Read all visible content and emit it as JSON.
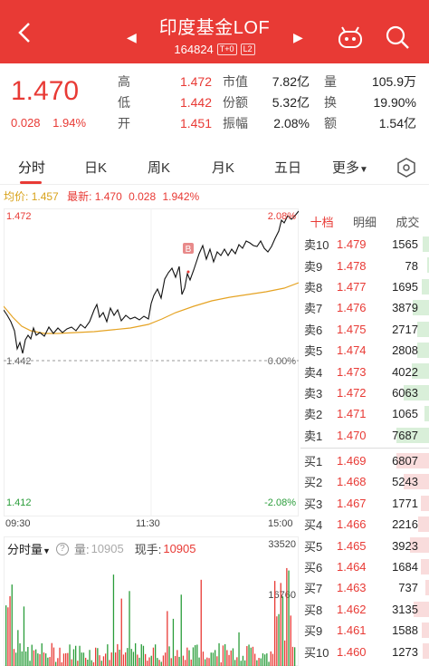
{
  "header": {
    "title": "印度基金LOF",
    "code": "164824",
    "tags": [
      "T+0",
      "L2"
    ]
  },
  "quote": {
    "price": "1.470",
    "change": "0.028",
    "change_pct": "1.94%",
    "rows": [
      {
        "l1": "高",
        "v1": "1.472",
        "l2": "市值",
        "v2": "7.82亿",
        "l3": "量",
        "v3": "105.9万"
      },
      {
        "l1": "低",
        "v1": "1.442",
        "l2": "份额",
        "v2": "5.32亿",
        "l3": "换",
        "v3": "19.90%"
      },
      {
        "l1": "开",
        "v1": "1.451",
        "l2": "振幅",
        "v2": "2.08%",
        "l3": "额",
        "v3": "1.54亿"
      }
    ]
  },
  "tabs": [
    "分时",
    "日K",
    "周K",
    "月K",
    "五日",
    "更多"
  ],
  "avg_info": {
    "avg_label": "均价:",
    "avg": "1.457",
    "latest_label": "最新:",
    "latest": "1.470",
    "chg": "0.028",
    "pct": "1.942%"
  },
  "chart": {
    "top_price": "1.472",
    "top_pct": "2.08%",
    "mid_price": "1.442",
    "mid_pct": "0.00%",
    "bot_price": "1.412",
    "bot_pct": "-2.08%",
    "t_start": "09:30",
    "t_mid": "11:30",
    "t_end": "15:00",
    "marker": "B"
  },
  "volume": {
    "dropdown": "分时量",
    "vol_label": "量:",
    "vol": "10905",
    "now_label": "现手:",
    "now": "10905",
    "max": "33520",
    "mid": "16760"
  },
  "book": {
    "tabs": [
      "十档",
      "明细",
      "成交"
    ],
    "sell": [
      {
        "label": "卖10",
        "price": "1.479",
        "vol": "1565"
      },
      {
        "label": "卖9",
        "price": "1.478",
        "vol": "78"
      },
      {
        "label": "卖8",
        "price": "1.477",
        "vol": "1695"
      },
      {
        "label": "卖7",
        "price": "1.476",
        "vol": "3879"
      },
      {
        "label": "卖6",
        "price": "1.475",
        "vol": "2717"
      },
      {
        "label": "卖5",
        "price": "1.474",
        "vol": "2808"
      },
      {
        "label": "卖4",
        "price": "1.473",
        "vol": "4022"
      },
      {
        "label": "卖3",
        "price": "1.472",
        "vol": "6063"
      },
      {
        "label": "卖2",
        "price": "1.471",
        "vol": "1065"
      },
      {
        "label": "卖1",
        "price": "1.470",
        "vol": "7687"
      }
    ],
    "buy": [
      {
        "label": "买1",
        "price": "1.469",
        "vol": "6807"
      },
      {
        "label": "买2",
        "price": "1.468",
        "vol": "5243"
      },
      {
        "label": "买3",
        "price": "1.467",
        "vol": "1771"
      },
      {
        "label": "买4",
        "price": "1.466",
        "vol": "2216"
      },
      {
        "label": "买5",
        "price": "1.465",
        "vol": "3923"
      },
      {
        "label": "买6",
        "price": "1.464",
        "vol": "1684"
      },
      {
        "label": "买7",
        "price": "1.463",
        "vol": "737"
      },
      {
        "label": "买8",
        "price": "1.462",
        "vol": "3135"
      },
      {
        "label": "买9",
        "price": "1.461",
        "vol": "1588"
      },
      {
        "label": "买10",
        "price": "1.460",
        "vol": "1273"
      }
    ]
  },
  "colors": {
    "red": "#e83a35",
    "green": "#2a9d3a",
    "avg": "#e5a323"
  }
}
